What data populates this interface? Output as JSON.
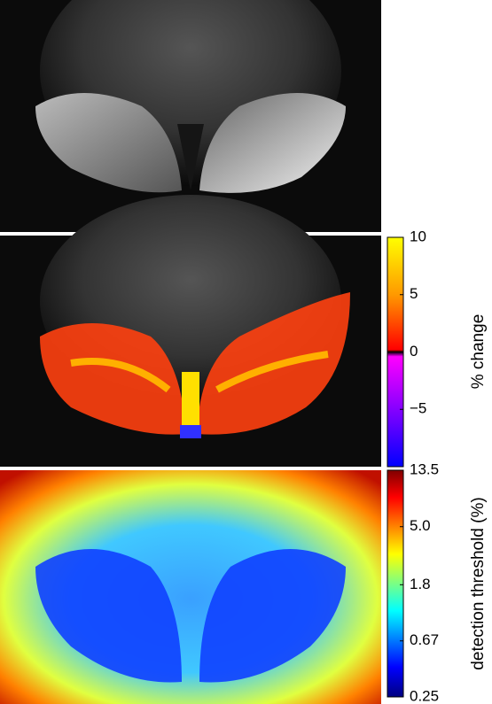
{
  "colorbars": [
    {
      "label": "% change",
      "scale": "linear",
      "lim": [
        -10,
        10
      ],
      "ticks": [
        10,
        5,
        0,
        {
          "value": -5,
          "label": "−5"
        }
      ]
    },
    {
      "label": "detection threshold (%)",
      "scale": "log",
      "lim": [
        0.25,
        13.5
      ],
      "ticks": [
        13.5,
        {
          "value": 5,
          "label": "5.0"
        },
        1.8,
        0.67,
        0.25
      ]
    }
  ]
}
